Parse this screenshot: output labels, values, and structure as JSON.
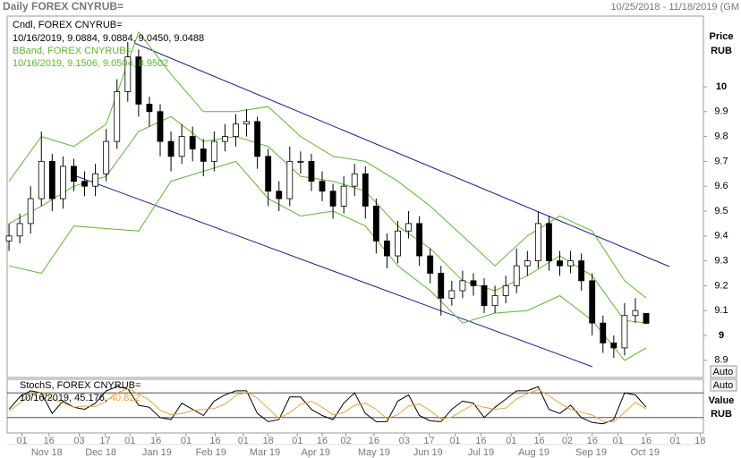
{
  "header": {
    "title": "Daily FOREX CNYRUB=",
    "range": "10/25/2018 - 11/18/2019 (GM"
  },
  "chart_data": [
    {
      "type": "candlestick",
      "legend": [
        "Cndl, FOREX CNYRUB=",
        "10/16/2019, 9.0884, 9.0884, 9.0450, 9.0488",
        "BBand, FOREX CNYRUB=",
        "10/16/2019, 9.1506, 9.0504, 8.9502"
      ],
      "y_label": [
        "Price",
        "RUB"
      ],
      "autoscale": "Auto",
      "open": [
        9.38,
        9.4,
        9.45,
        9.55,
        9.7,
        9.55,
        9.68,
        9.62,
        9.6,
        9.65,
        9.78,
        9.98,
        10.12,
        9.93,
        9.9,
        9.78,
        9.72,
        9.8,
        9.75,
        9.7,
        9.78,
        9.8,
        9.85,
        9.86,
        9.72,
        9.58,
        9.55,
        9.7,
        9.7,
        9.62,
        9.58,
        9.52,
        9.6,
        9.65,
        9.52,
        9.38,
        9.32,
        9.42,
        9.45,
        9.32,
        9.25,
        9.15,
        9.18,
        9.22,
        9.2,
        9.12,
        9.16,
        9.2,
        9.28,
        9.3,
        9.45,
        9.3,
        9.28,
        9.3,
        9.22,
        9.05,
        8.97,
        8.95,
        9.08,
        9.0884
      ],
      "high": [
        9.45,
        9.49,
        9.6,
        9.82,
        9.73,
        9.72,
        9.71,
        9.66,
        9.69,
        9.83,
        10.03,
        10.18,
        10.15,
        9.96,
        9.93,
        9.82,
        9.85,
        9.84,
        9.79,
        9.82,
        9.85,
        9.89,
        9.91,
        9.88,
        9.75,
        9.62,
        9.76,
        9.74,
        9.73,
        9.66,
        9.61,
        9.64,
        9.69,
        9.68,
        9.55,
        9.41,
        9.46,
        9.5,
        9.48,
        9.35,
        9.28,
        9.22,
        9.26,
        9.25,
        9.23,
        9.2,
        9.24,
        9.35,
        9.34,
        9.5,
        9.48,
        9.34,
        9.34,
        9.33,
        9.25,
        9.08,
        9.0,
        9.13,
        9.15,
        9.0884
      ],
      "low": [
        9.34,
        9.37,
        9.41,
        9.52,
        9.5,
        9.51,
        9.58,
        9.56,
        9.56,
        9.62,
        9.75,
        9.94,
        9.88,
        9.84,
        9.72,
        9.66,
        9.69,
        9.7,
        9.64,
        9.66,
        9.74,
        9.76,
        9.8,
        9.67,
        9.52,
        9.5,
        9.52,
        9.65,
        9.58,
        9.54,
        9.47,
        9.49,
        9.56,
        9.47,
        9.33,
        9.27,
        9.29,
        9.39,
        9.28,
        9.21,
        9.08,
        9.12,
        9.15,
        9.16,
        9.09,
        9.09,
        9.13,
        9.17,
        9.24,
        9.27,
        9.26,
        9.24,
        9.25,
        9.18,
        9.0,
        8.93,
        8.91,
        8.92,
        9.05,
        9.045
      ],
      "close": [
        9.4,
        9.45,
        9.55,
        9.7,
        9.55,
        9.68,
        9.62,
        9.6,
        9.65,
        9.78,
        9.98,
        10.12,
        9.93,
        9.9,
        9.78,
        9.72,
        9.8,
        9.75,
        9.7,
        9.78,
        9.8,
        9.85,
        9.86,
        9.72,
        9.58,
        9.55,
        9.7,
        9.7,
        9.62,
        9.58,
        9.52,
        9.6,
        9.65,
        9.52,
        9.38,
        9.32,
        9.42,
        9.45,
        9.32,
        9.25,
        9.15,
        9.18,
        9.22,
        9.2,
        9.12,
        9.16,
        9.2,
        9.28,
        9.3,
        9.45,
        9.3,
        9.28,
        9.3,
        9.22,
        9.05,
        8.97,
        8.95,
        9.08,
        9.1,
        9.0488
      ],
      "up_color": "#ffffff",
      "down_color": "#000000",
      "band_x": [
        0,
        3,
        6,
        9,
        12,
        15,
        18,
        21,
        24,
        27,
        30,
        33,
        36,
        39,
        42,
        45,
        48,
        51,
        54,
        57,
        59
      ],
      "band_upper": [
        9.62,
        9.8,
        9.76,
        9.85,
        10.22,
        10.05,
        9.9,
        9.9,
        9.92,
        9.8,
        9.72,
        9.7,
        9.62,
        9.52,
        9.4,
        9.28,
        9.4,
        9.48,
        9.42,
        9.22,
        9.1506
      ],
      "band_middle": [
        9.45,
        9.52,
        9.6,
        9.64,
        9.82,
        9.88,
        9.78,
        9.8,
        9.76,
        9.64,
        9.62,
        9.58,
        9.44,
        9.35,
        9.22,
        9.18,
        9.24,
        9.32,
        9.24,
        9.06,
        9.0504
      ],
      "band_lower": [
        9.28,
        9.25,
        9.44,
        9.43,
        9.42,
        9.62,
        9.66,
        9.7,
        9.55,
        9.48,
        9.5,
        9.44,
        9.28,
        9.18,
        9.05,
        9.09,
        9.1,
        9.16,
        9.06,
        8.9,
        8.9502
      ],
      "band_color": "#5cb82c",
      "xlim": [
        -0.17,
        64.3
      ],
      "xticks": [
        {
          "value": 1.2,
          "label": "01"
        },
        {
          "value": 3.7,
          "label": "16"
        },
        {
          "value": 6.5,
          "label": "03"
        },
        {
          "value": 8.9,
          "label": "17"
        },
        {
          "value": 11.2,
          "label": "01"
        },
        {
          "value": 13.6,
          "label": "16"
        },
        {
          "value": 16.4,
          "label": "01"
        },
        {
          "value": 19.1,
          "label": "16"
        },
        {
          "value": 21.7,
          "label": "01"
        },
        {
          "value": 24,
          "label": "18"
        },
        {
          "value": 26.7,
          "label": "01"
        },
        {
          "value": 29,
          "label": "16"
        },
        {
          "value": 31.2,
          "label": "02"
        },
        {
          "value": 33.8,
          "label": "16"
        },
        {
          "value": 36.6,
          "label": "03"
        },
        {
          "value": 38.9,
          "label": "17"
        },
        {
          "value": 41.3,
          "label": "01"
        },
        {
          "value": 43.7,
          "label": "16"
        },
        {
          "value": 46.5,
          "label": "01"
        },
        {
          "value": 49.1,
          "label": "16"
        },
        {
          "value": 51.7,
          "label": "02"
        },
        {
          "value": 54,
          "label": "16"
        },
        {
          "value": 56.4,
          "label": "01"
        },
        {
          "value": 59,
          "label": "16"
        },
        {
          "value": 61.7,
          "label": "01"
        },
        {
          "value": 64,
          "label": "18"
        }
      ],
      "months": [
        {
          "value": 3.5,
          "label": "Nov 18"
        },
        {
          "value": 8.5,
          "label": "Dec 18"
        },
        {
          "value": 13.7,
          "label": "Jan 19"
        },
        {
          "value": 18.7,
          "label": "Feb 19"
        },
        {
          "value": 23.7,
          "label": "Mar 19"
        },
        {
          "value": 28.4,
          "label": "Apr 19"
        },
        {
          "value": 33.8,
          "label": "May 19"
        },
        {
          "value": 38.8,
          "label": "Jun 19"
        },
        {
          "value": 43.7,
          "label": "Jul 19"
        },
        {
          "value": 48.6,
          "label": "Aug 19"
        },
        {
          "value": 53.9,
          "label": "Sep 19"
        },
        {
          "value": 58.9,
          "label": "Oct 19"
        }
      ],
      "ylim": [
        8.831,
        10.284
      ],
      "yticks": [
        10,
        9.9,
        9.8,
        9.7,
        9.6,
        9.5,
        9.4,
        9.3,
        9.2,
        9.1,
        9,
        8.9
      ]
    },
    {
      "type": "line",
      "legend": [
        "StochS, FOREX CNYRUB=",
        "10/16/2019, 45.176,",
        "40.822"
      ],
      "y_label": [
        "Value",
        "RUB"
      ],
      "autoscale": "Auto",
      "series": [
        {
          "color": "#000000",
          "values": [
            40,
            70,
            85,
            80,
            30,
            60,
            45,
            40,
            55,
            85,
            95,
            90,
            50,
            45,
            20,
            15,
            55,
            40,
            25,
            60,
            75,
            85,
            85,
            30,
            10,
            15,
            70,
            70,
            40,
            25,
            15,
            55,
            80,
            30,
            10,
            10,
            60,
            75,
            25,
            12,
            10,
            40,
            60,
            55,
            20,
            45,
            65,
            85,
            85,
            95,
            40,
            30,
            50,
            20,
            8,
            5,
            15,
            80,
            75,
            45.176
          ]
        },
        {
          "color": "#e8a33c",
          "values": [
            35,
            55,
            75,
            82,
            65,
            55,
            45,
            48,
            47,
            60,
            80,
            90,
            78,
            62,
            38,
            27,
            30,
            37,
            40,
            42,
            53,
            73,
            82,
            67,
            42,
            18,
            32,
            52,
            60,
            45,
            27,
            32,
            50,
            55,
            40,
            17,
            27,
            48,
            53,
            37,
            16,
            21,
            37,
            52,
            45,
            40,
            43,
            65,
            78,
            88,
            73,
            55,
            40,
            33,
            26,
            11,
            9,
            33,
            57,
            40.822
          ]
        }
      ],
      "ylim": [
        0,
        100
      ],
      "levels": [
        80,
        20
      ]
    }
  ]
}
